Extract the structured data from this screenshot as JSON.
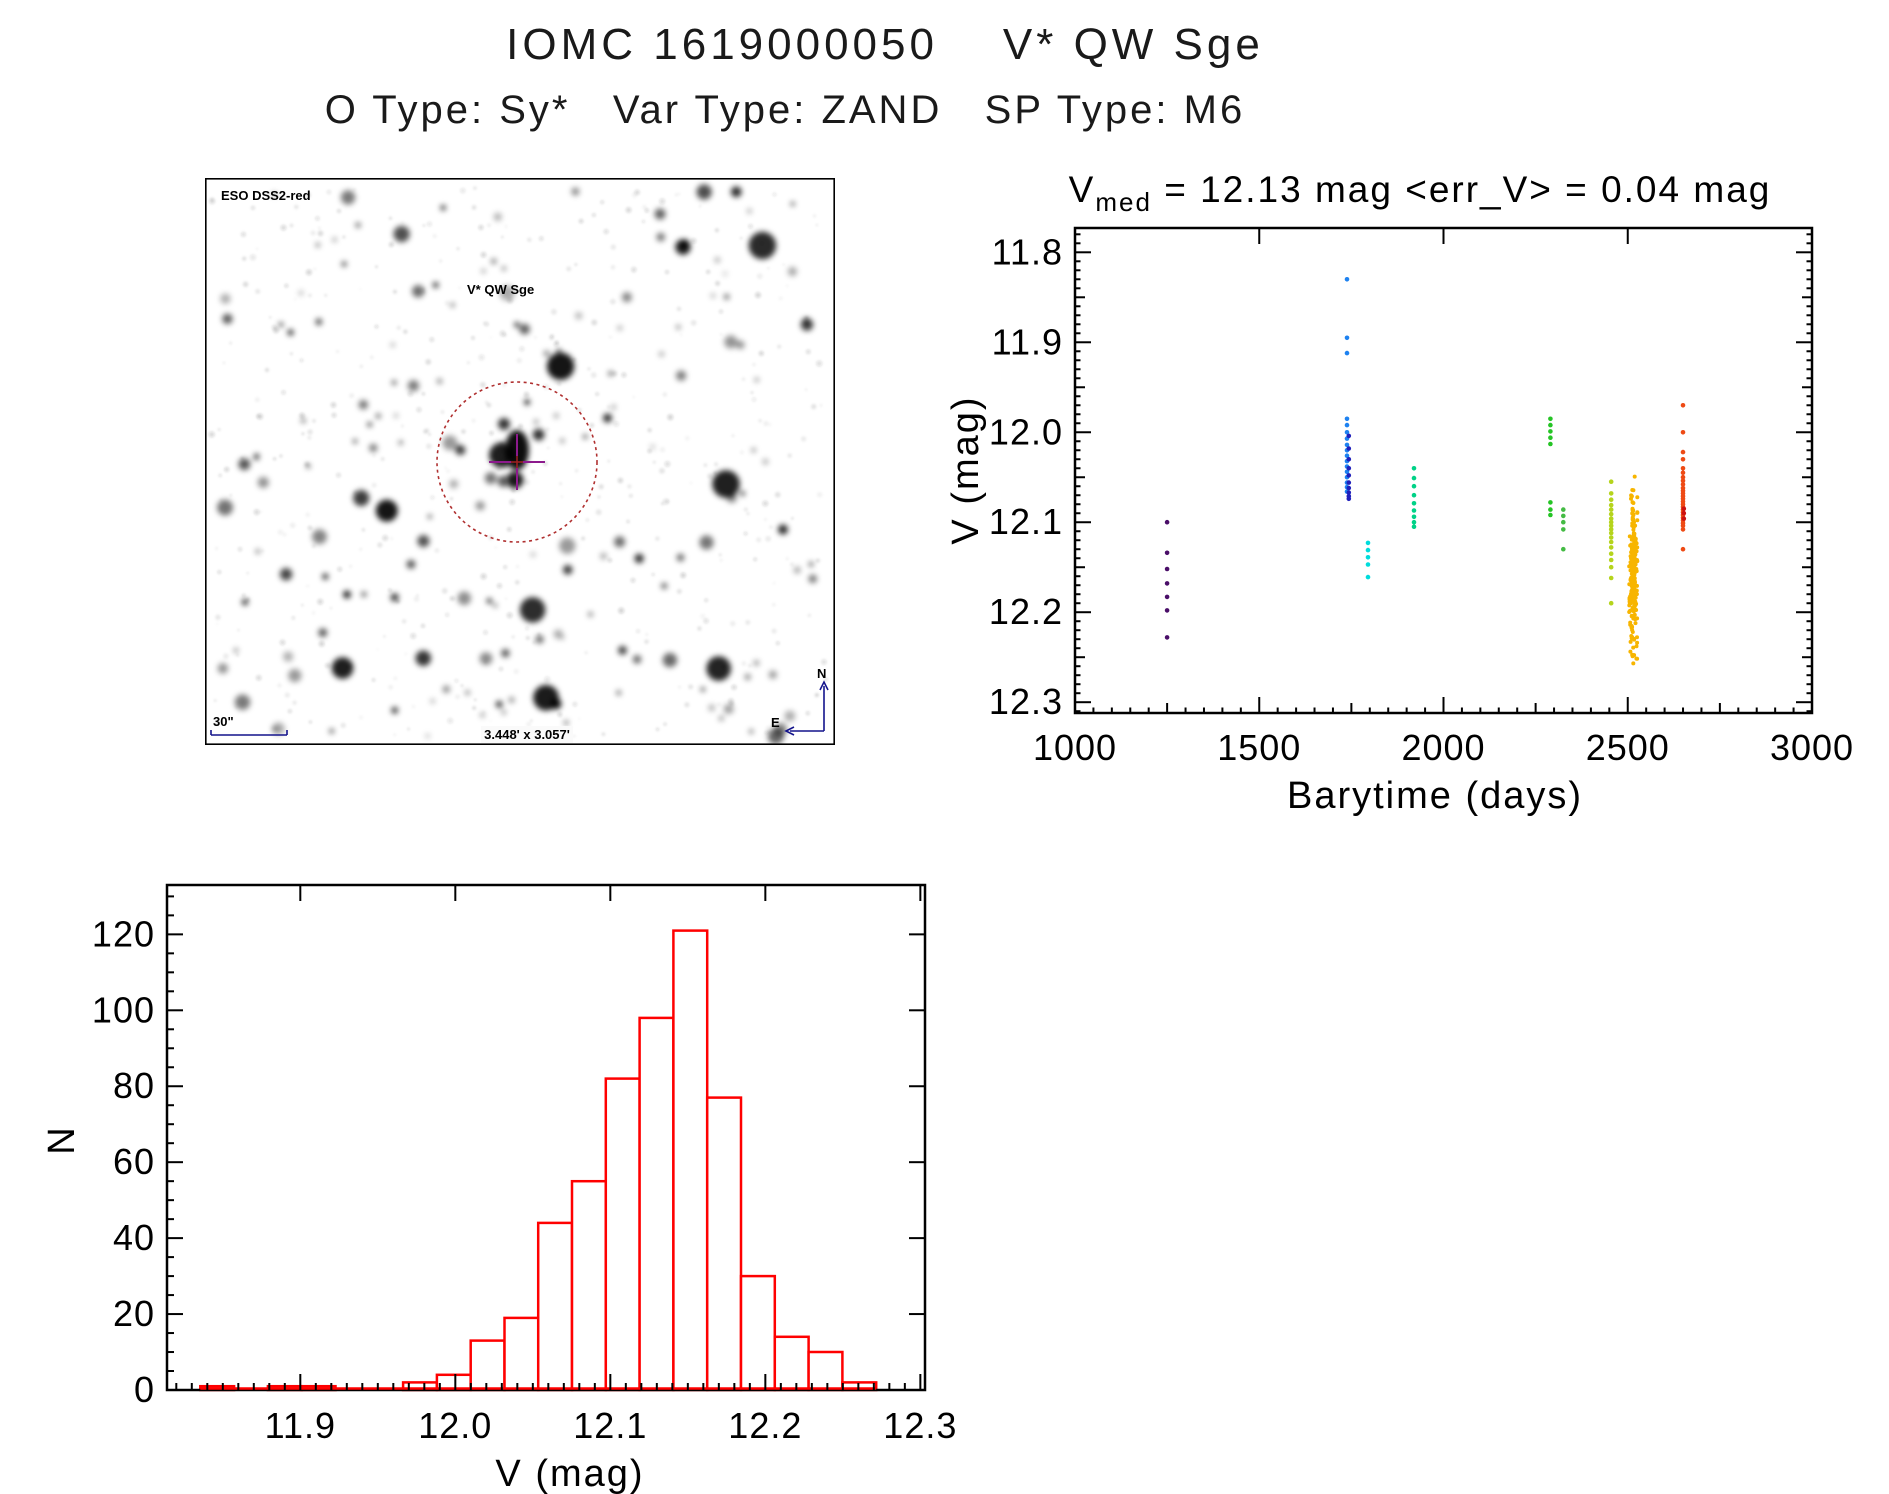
{
  "page": {
    "title": "IOMC 1619000050    V* QW Sge",
    "subtitle": "O Type: Sy*   Var Type: ZAND   SP Type: M6"
  },
  "finder": {
    "survey_label": "ESO DSS2-red",
    "target_label": "V* QW Sge",
    "scale_label": "30\"",
    "fov_label": "3.448' x 3.057'",
    "compass_north": "N",
    "compass_east": "E",
    "annotation_color": "#14148c",
    "target_label_color": "#c01414",
    "circle_color": "#b03030",
    "crosshair_color": "#8c1a8c",
    "starfield": {
      "seed": 77,
      "n_faint": 420,
      "n_stars": 160,
      "n_big": 9
    }
  },
  "chart_data": [
    {
      "type": "scatter",
      "title_v": "V",
      "title_sub": "med",
      "title_rest": " = 12.13 mag <err_V> = 0.04 mag",
      "xlabel": "Barytime (days)",
      "ylabel": "V (mag)",
      "xlim": [
        1000,
        3000
      ],
      "ylim": [
        11.773,
        12.312
      ],
      "y_inverted": true,
      "xticks": [
        1000,
        1500,
        2000,
        2500,
        3000
      ],
      "yticks": [
        11.8,
        11.9,
        12.0,
        12.1,
        12.2,
        12.3
      ],
      "series": [
        {
          "name": "epoch-1250",
          "color": "#4a0e68",
          "x": 1250,
          "v": [
            12.1,
            12.134,
            12.152,
            12.168,
            12.183,
            12.198,
            12.228
          ]
        },
        {
          "name": "epoch-1738-light-blue",
          "color": "#1e82f0",
          "x": 1738,
          "v": [
            11.83,
            11.895,
            11.912,
            11.985,
            11.992,
            12.0,
            12.007,
            12.014,
            12.02,
            12.026,
            12.032,
            12.038,
            12.044,
            12.05,
            12.056,
            12.061,
            12.066
          ]
        },
        {
          "name": "epoch-1742-dark-blue",
          "color": "#2020bb",
          "x": 1743,
          "v": [
            12.004,
            12.018,
            12.03,
            12.04,
            12.048,
            12.056,
            12.062,
            12.067,
            12.071,
            12.074
          ]
        },
        {
          "name": "epoch-1795-cyan",
          "color": "#00dcdc",
          "x": 1795,
          "v": [
            12.123,
            12.131,
            12.139,
            12.147,
            12.161
          ]
        },
        {
          "name": "epoch-1920-teal",
          "color": "#00d287",
          "x": 1920,
          "v": [
            12.04,
            12.051,
            12.06,
            12.07,
            12.079,
            12.087,
            12.094,
            12.1,
            12.105
          ]
        },
        {
          "name": "epoch-2290-green",
          "color": "#25c425",
          "x": 2290,
          "v": [
            11.985,
            11.992,
            11.999,
            12.006,
            12.013,
            12.078,
            12.086,
            12.092
          ]
        },
        {
          "name": "epoch-2325-green",
          "color": "#44bb44",
          "x": 2325,
          "v": [
            12.086,
            12.093,
            12.1,
            12.108,
            12.13
          ]
        },
        {
          "name": "epoch-2455-yellowgreen",
          "color": "#b5d41c",
          "x": 2455,
          "v": [
            12.055,
            12.068,
            12.075,
            12.081,
            12.086,
            12.091,
            12.096,
            12.1,
            12.104,
            12.108,
            12.112,
            12.117,
            12.122,
            12.128,
            12.135,
            12.142,
            12.15,
            12.162,
            12.19
          ]
        },
        {
          "name": "epoch-2515-amber",
          "color": "#f7b500",
          "x": 2515,
          "generate": {
            "n": 235,
            "mean": 12.158,
            "sigma": 0.042,
            "min": 12.035,
            "max": 12.268,
            "x_jitter_sigma": 5,
            "x_jitter_max": 11,
            "seed": 913,
            "r": 2.0
          }
        },
        {
          "name": "epoch-2650-orangered",
          "color": "#ee4a14",
          "x": 2650,
          "v": [
            11.97,
            12.0,
            12.022,
            12.03,
            12.04,
            12.045,
            12.05,
            12.054,
            12.058,
            12.062,
            12.065,
            12.068,
            12.071,
            12.074,
            12.077,
            12.08,
            12.083,
            12.086,
            12.089,
            12.092,
            12.095,
            12.098,
            12.101,
            12.104,
            12.108,
            12.13
          ]
        },
        {
          "name": "epoch-2650-darkred",
          "color": "#cc1111",
          "x": 2652,
          "v": [
            12.085,
            12.09,
            12.096
          ]
        }
      ]
    },
    {
      "type": "bar",
      "subtype": "histogram",
      "xlabel": "V (mag)",
      "ylabel": "N",
      "xlim": [
        11.814,
        12.303
      ],
      "ylim": [
        0,
        133
      ],
      "xticks": [
        11.9,
        12.0,
        12.1,
        12.2,
        12.3
      ],
      "yticks": [
        0,
        20,
        40,
        60,
        80,
        100,
        120
      ],
      "bin_start": 11.8355,
      "bin_width": 0.0218,
      "counts": [
        1,
        0,
        1,
        1,
        0,
        0,
        2,
        4,
        13,
        19,
        44,
        55,
        82,
        98,
        121,
        77,
        30,
        14,
        10,
        2
      ],
      "color": "#ff0000"
    }
  ]
}
